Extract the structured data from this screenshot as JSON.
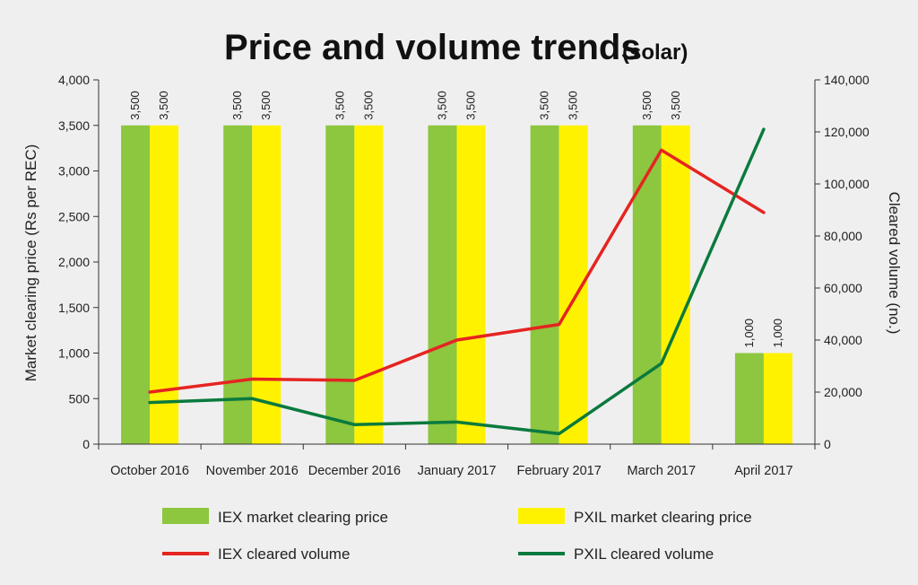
{
  "chart_data": {
    "type": "bar",
    "title": "Price and volume trends",
    "subtitle": "(solar)",
    "categories": [
      "October 2016",
      "November 2016",
      "December 2016",
      "January 2017",
      "February 2017",
      "March 2017",
      "April 2017"
    ],
    "bar_series": [
      {
        "name": "IEX market clearing price",
        "color": "#8dc63f",
        "values": [
          3500,
          3500,
          3500,
          3500,
          3500,
          3500,
          1000
        ],
        "labels": [
          "3,500",
          "3,500",
          "3,500",
          "3,500",
          "3,500",
          "3,500",
          "1,000"
        ]
      },
      {
        "name": "PXIL market clearing price",
        "color": "#fff200",
        "values": [
          3500,
          3500,
          3500,
          3500,
          3500,
          3500,
          1000
        ],
        "labels": [
          "3,500",
          "3,500",
          "3,500",
          "3,500",
          "3,500",
          "3,500",
          "1,000"
        ]
      }
    ],
    "line_series": [
      {
        "name": "IEX cleared volume",
        "color": "#e52421",
        "values": [
          20000,
          25000,
          24500,
          40000,
          46000,
          113000,
          89000
        ]
      },
      {
        "name": "PXIL cleared volume",
        "color": "#0a7a3e",
        "values": [
          16000,
          17500,
          7500,
          8500,
          4000,
          31000,
          121000
        ]
      }
    ],
    "ylabel": "Market clearing price (Rs per REC)",
    "y2label": "Cleared volume (no.)",
    "ylim": [
      0,
      4000
    ],
    "y2lim": [
      0,
      140000
    ],
    "yticks": [
      "0",
      "500",
      "1,000",
      "1,500",
      "2,000",
      "2,500",
      "3,000",
      "3,500",
      "4,000"
    ],
    "y2ticks": [
      "0",
      "20,000",
      "40,000",
      "60,000",
      "80,000",
      "100,000",
      "120,000",
      "140,000"
    ],
    "grid": false,
    "legend_position": "bottom"
  }
}
